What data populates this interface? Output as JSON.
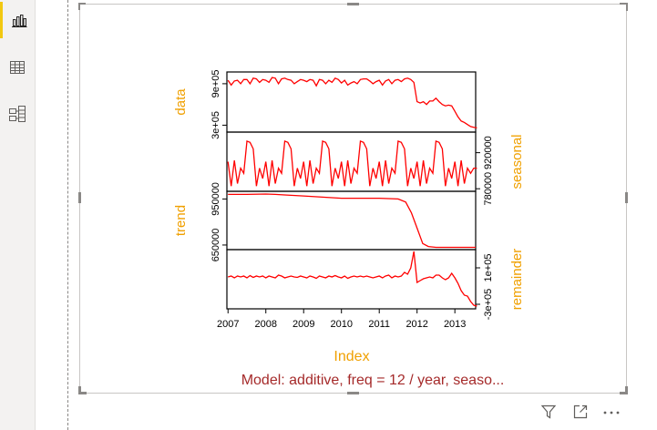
{
  "sidebar": {
    "items": [
      {
        "icon": "bar-chart-icon",
        "label": "Report",
        "active": true
      },
      {
        "icon": "table-icon",
        "label": "Data",
        "active": false
      },
      {
        "icon": "model-icon",
        "label": "Model",
        "active": false
      }
    ]
  },
  "visual": {
    "caption": "Model: additive, freq = 12 / year, seaso...",
    "toolbar": [
      "filter-icon",
      "focus-mode-icon",
      "more-options-icon"
    ]
  },
  "chart_data": {
    "type": "line",
    "xlabel": "Index",
    "x_ticks": [
      "2007",
      "2008",
      "2009",
      "2010",
      "2011",
      "2012",
      "2013"
    ],
    "xlim": [
      2006.97,
      2013.55
    ],
    "line_color": "#ff0000",
    "label_color": "#f0a000",
    "caption_color": "#a52a2a",
    "panels": [
      {
        "name": "data",
        "label_side": "left",
        "ticks": [
          "3e+05",
          "9e+05"
        ],
        "tick_values": [
          300000,
          900000
        ],
        "ylim": [
          200000,
          1070000
        ],
        "values": [
          950000,
          880000,
          940000,
          950000,
          900000,
          960000,
          960000,
          900000,
          980000,
          970000,
          920000,
          960000,
          950000,
          920000,
          990000,
          980000,
          900000,
          970000,
          980000,
          960000,
          950000,
          900000,
          930000,
          960000,
          950000,
          930000,
          960000,
          950000,
          870000,
          960000,
          950000,
          900000,
          950000,
          920000,
          980000,
          960000,
          910000,
          950000,
          880000,
          910000,
          930000,
          900000,
          960000,
          970000,
          970000,
          940000,
          900000,
          930000,
          950000,
          880000,
          940000,
          960000,
          900000,
          950000,
          960000,
          930000,
          970000,
          980000,
          960000,
          920000,
          640000,
          620000,
          640000,
          600000,
          650000,
          650000,
          690000,
          640000,
          600000,
          580000,
          590000,
          580000,
          500000,
          420000,
          360000,
          340000,
          310000,
          280000,
          270000,
          260000
        ]
      },
      {
        "name": "seasonal",
        "label_side": "right",
        "ticks": [
          "780000",
          "920000"
        ],
        "tick_values": [
          780000,
          920000
        ],
        "ylim": [
          770000,
          1000000
        ],
        "values": [
          885000,
          790000,
          890000,
          800000,
          860000,
          840000,
          965000,
          960000,
          935000,
          790000,
          860000,
          820000,
          885000,
          790000,
          890000,
          800000,
          860000,
          840000,
          965000,
          960000,
          935000,
          790000,
          860000,
          820000,
          885000,
          790000,
          890000,
          800000,
          860000,
          840000,
          965000,
          960000,
          935000,
          790000,
          860000,
          820000,
          885000,
          790000,
          890000,
          800000,
          860000,
          840000,
          965000,
          960000,
          935000,
          790000,
          860000,
          820000,
          885000,
          790000,
          890000,
          800000,
          860000,
          840000,
          965000,
          960000,
          935000,
          790000,
          860000,
          820000,
          885000,
          790000,
          890000,
          800000,
          860000,
          840000,
          965000,
          960000,
          935000,
          790000,
          860000,
          820000,
          885000,
          790000,
          890000,
          800000,
          860000,
          840000,
          860000,
          860000
        ]
      },
      {
        "name": "trend",
        "label_side": "left",
        "ticks": [
          "650000",
          "950000"
        ],
        "tick_values": [
          650000,
          950000
        ],
        "ylim": [
          620000,
          1000000
        ],
        "x": [
          2007.0,
          2007.5,
          2008.0,
          2008.25,
          2008.5,
          2009.0,
          2009.5,
          2010.0,
          2010.5,
          2011.0,
          2011.5,
          2011.7,
          2011.85,
          2012.0,
          2012.15,
          2012.3,
          2012.5,
          2013.0,
          2013.55
        ],
        "values": [
          980000,
          980000,
          982000,
          980000,
          976000,
          970000,
          962000,
          955000,
          955000,
          955000,
          950000,
          930000,
          860000,
          760000,
          660000,
          640000,
          635000,
          635000,
          635000
        ]
      },
      {
        "name": "remainder",
        "label_side": "right",
        "ticks": [
          "-3e+05",
          "1e+05"
        ],
        "tick_values": [
          -300000,
          100000
        ],
        "ylim": [
          -350000,
          300000
        ],
        "values": [
          0,
          10000,
          -10000,
          10000,
          0,
          10000,
          -10000,
          15000,
          -5000,
          10000,
          0,
          10000,
          -10000,
          10000,
          0,
          -10000,
          20000,
          10000,
          -10000,
          0,
          10000,
          0,
          -5000,
          10000,
          0,
          -10000,
          10000,
          0,
          -15000,
          10000,
          0,
          -10000,
          10000,
          0,
          15000,
          0,
          -10000,
          10000,
          -15000,
          0,
          10000,
          0,
          10000,
          0,
          10000,
          0,
          -10000,
          0,
          10000,
          -10000,
          10000,
          20000,
          -10000,
          10000,
          0,
          10000,
          50000,
          30000,
          100000,
          280000,
          -60000,
          -40000,
          -20000,
          -10000,
          0,
          -10000,
          20000,
          20000,
          -10000,
          -30000,
          -10000,
          40000,
          -10000,
          -70000,
          -150000,
          -200000,
          -210000,
          -270000,
          -310000,
          -320000
        ]
      }
    ]
  }
}
